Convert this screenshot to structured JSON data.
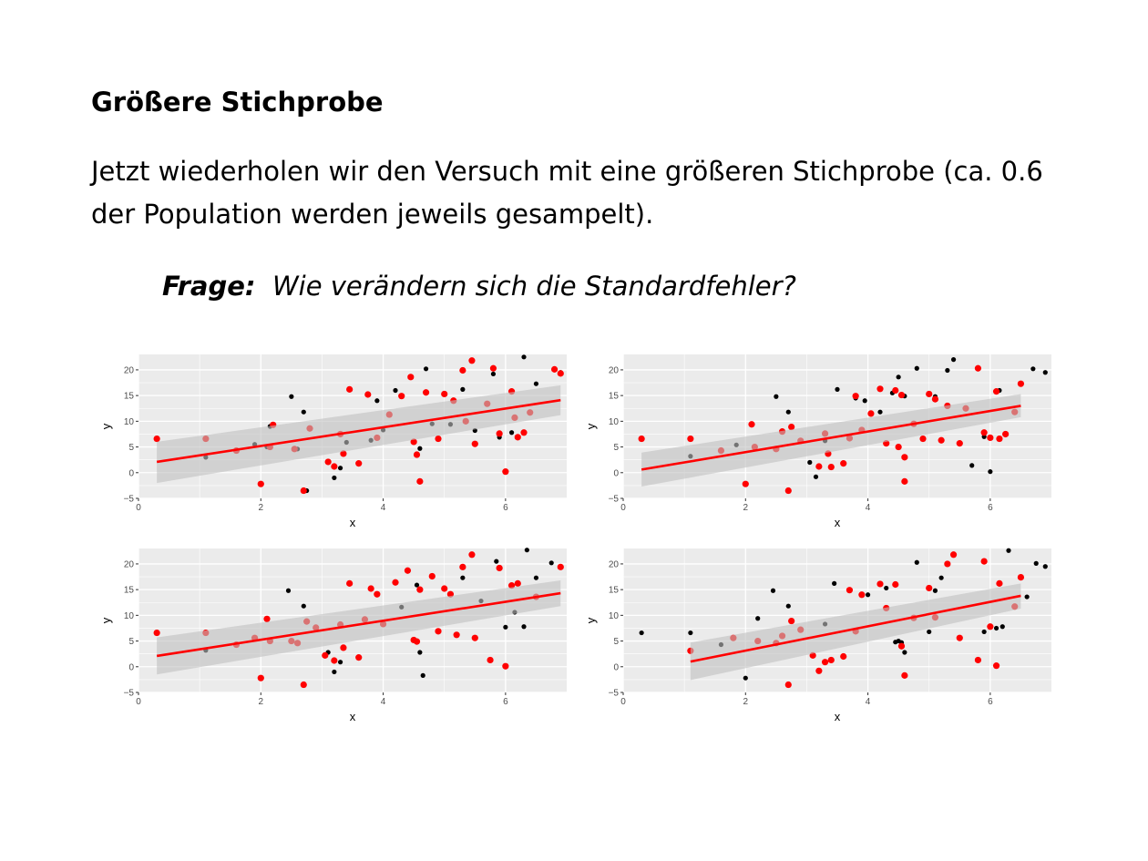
{
  "slide": {
    "title": "Größere Stichprobe",
    "body": "Jetzt wiederholen wir den Versuch mit eine größeren Stichprobe (ca. 0.6 der Population werden jeweils gesampelt).",
    "question_label": "Frage:",
    "question_text": "Wie verändern sich die Standardfehler?"
  },
  "colors": {
    "panel_bg": "#ebebeb",
    "grid": "#ffffff",
    "population_points": "#000000",
    "sample_points": "#ff0000",
    "fit_line": "#ff0000",
    "confidence_band": "#c0c0c0"
  },
  "chart_data": [
    {
      "type": "scatter",
      "title": "",
      "xlabel": "x",
      "ylabel": "y",
      "xlim": [
        0,
        7
      ],
      "ylim": [
        -5,
        23
      ],
      "xticks": [
        0,
        2,
        4,
        6
      ],
      "yticks": [
        -5,
        0,
        5,
        10,
        15,
        20
      ],
      "grid": true,
      "legend": "none",
      "series": [
        {
          "x": [
            0.3,
            1.1,
            1.6,
            1.9,
            2.0,
            2.1,
            2.15,
            2.5,
            2.6,
            2.7,
            2.75,
            3.1,
            3.2,
            3.3,
            3.4,
            3.6,
            3.8,
            3.9,
            4.0,
            4.2,
            4.5,
            4.6,
            4.7,
            4.8,
            5.0,
            5.1,
            5.3,
            5.5,
            5.8,
            5.9,
            6.1,
            6.3,
            6.5,
            6.9
          ],
          "y": [
            6.6,
            3.0,
            4.3,
            5.5,
            -2.2,
            5.0,
            9.0,
            14.8,
            4.6,
            11.8,
            -3.5,
            2.0,
            -1.0,
            0.9,
            5.9,
            1.8,
            6.3,
            14.0,
            8.3,
            16.0,
            6.0,
            4.7,
            20.2,
            9.5,
            15.3,
            9.4,
            16.2,
            8.2,
            19.2,
            6.9,
            7.8,
            22.5,
            17.3,
            19.5
          ]
        },
        {
          "x": [
            0.3,
            1.1,
            1.6,
            2.0,
            2.15,
            2.2,
            2.55,
            2.7,
            2.8,
            3.1,
            3.2,
            3.3,
            3.35,
            3.45,
            3.6,
            3.75,
            3.9,
            4.1,
            4.3,
            4.45,
            4.5,
            4.55,
            4.6,
            4.7,
            4.9,
            5.0,
            5.15,
            5.3,
            5.35,
            5.45,
            5.5,
            5.7,
            5.8,
            5.9,
            6.0,
            6.1,
            6.15,
            6.2,
            6.3,
            6.4,
            6.8,
            6.9
          ],
          "y": [
            6.6,
            6.6,
            4.3,
            -2.2,
            5.0,
            9.3,
            4.6,
            -3.5,
            8.6,
            2.1,
            1.2,
            7.5,
            3.7,
            16.2,
            1.8,
            15.2,
            6.8,
            11.3,
            14.9,
            18.6,
            6.0,
            3.5,
            -1.7,
            15.6,
            6.6,
            15.3,
            14.0,
            19.9,
            10.0,
            21.8,
            5.6,
            13.4,
            20.3,
            7.6,
            0.2,
            15.8,
            10.7,
            6.9,
            7.8,
            11.7,
            20.1,
            19.3
          ]
        }
      ],
      "fit": {
        "x": [
          0.3,
          6.9
        ],
        "y": [
          2.1,
          14.1
        ],
        "band_low": [
          -2.0,
          11.2
        ],
        "band_high": [
          6.0,
          17.0
        ]
      }
    },
    {
      "type": "scatter",
      "title": "",
      "xlabel": "x",
      "ylabel": "y",
      "xlim": [
        0,
        7
      ],
      "ylim": [
        -5,
        23
      ],
      "xticks": [
        0,
        2,
        4,
        6
      ],
      "yticks": [
        -5,
        0,
        5,
        10,
        15,
        20
      ],
      "grid": true,
      "legend": "none",
      "series": [
        {
          "x": [
            1.1,
            1.85,
            2.5,
            2.7,
            3.05,
            3.15,
            3.3,
            3.5,
            3.8,
            3.95,
            4.2,
            4.4,
            4.5,
            4.6,
            4.8,
            5.1,
            5.3,
            5.4,
            5.7,
            5.9,
            6.0,
            6.15,
            6.7,
            6.9
          ],
          "y": [
            3.2,
            5.4,
            14.8,
            11.8,
            2.0,
            -0.8,
            6.2,
            16.2,
            14.5,
            14.0,
            11.8,
            15.5,
            18.6,
            14.9,
            20.3,
            14.8,
            19.9,
            22.0,
            1.4,
            7.0,
            0.2,
            16.0,
            20.2,
            19.5
          ]
        },
        {
          "x": [
            0.3,
            1.1,
            1.6,
            2.0,
            2.1,
            2.15,
            2.5,
            2.6,
            2.7,
            2.75,
            2.9,
            3.2,
            3.3,
            3.35,
            3.4,
            3.6,
            3.7,
            3.8,
            3.9,
            4.05,
            4.2,
            4.3,
            4.45,
            4.5,
            4.55,
            4.6,
            4.6,
            4.75,
            4.9,
            5.0,
            5.1,
            5.2,
            5.3,
            5.5,
            5.6,
            5.8,
            5.9,
            6.0,
            6.1,
            6.15,
            6.25,
            6.4,
            6.5
          ],
          "y": [
            6.6,
            6.6,
            4.3,
            -2.2,
            9.4,
            5.0,
            4.6,
            8.0,
            -3.5,
            8.9,
            6.2,
            1.2,
            7.6,
            3.7,
            1.1,
            1.8,
            6.7,
            14.9,
            8.3,
            11.5,
            16.3,
            5.7,
            16.0,
            5.0,
            15.1,
            3.0,
            -1.7,
            9.5,
            6.6,
            15.3,
            14.3,
            6.3,
            13.0,
            5.7,
            12.5,
            20.3,
            7.8,
            6.8,
            15.8,
            6.6,
            7.5,
            11.8,
            17.3
          ]
        }
      ],
      "fit": {
        "x": [
          0.3,
          6.5
        ],
        "y": [
          0.6,
          13.0
        ],
        "band_low": [
          -2.7,
          10.8
        ],
        "band_high": [
          3.9,
          15.3
        ]
      }
    },
    {
      "type": "scatter",
      "title": "",
      "xlabel": "x",
      "ylabel": "y",
      "xlim": [
        0,
        7
      ],
      "ylim": [
        -5,
        23
      ],
      "xticks": [
        0,
        2,
        4,
        6
      ],
      "yticks": [
        -5,
        0,
        5,
        10,
        15,
        20
      ],
      "grid": true,
      "legend": "none",
      "series": [
        {
          "x": [
            1.1,
            1.6,
            2.45,
            2.7,
            3.1,
            3.2,
            3.3,
            4.3,
            4.55,
            4.6,
            4.65,
            5.0,
            5.3,
            5.6,
            5.85,
            6.0,
            6.15,
            6.3,
            6.35,
            6.5,
            6.75
          ],
          "y": [
            3.2,
            4.3,
            14.8,
            11.8,
            2.8,
            -1.0,
            0.9,
            11.6,
            15.9,
            2.8,
            -1.7,
            15.2,
            17.3,
            12.8,
            20.5,
            7.7,
            10.6,
            7.8,
            22.7,
            17.3,
            20.2
          ]
        },
        {
          "x": [
            0.3,
            1.1,
            1.6,
            1.9,
            2.0,
            2.1,
            2.15,
            2.5,
            2.6,
            2.7,
            2.75,
            2.9,
            3.05,
            3.2,
            3.3,
            3.35,
            3.45,
            3.6,
            3.7,
            3.8,
            3.9,
            4.0,
            4.2,
            4.4,
            4.5,
            4.55,
            4.6,
            4.8,
            4.9,
            5.0,
            5.1,
            5.2,
            5.3,
            5.45,
            5.5,
            5.75,
            5.9,
            6.0,
            6.1,
            6.2,
            6.5,
            6.9
          ],
          "y": [
            6.6,
            6.6,
            4.3,
            5.6,
            -2.2,
            9.3,
            5.0,
            5.0,
            4.6,
            -3.5,
            8.8,
            7.6,
            2.2,
            1.2,
            8.2,
            3.7,
            16.2,
            1.8,
            9.2,
            15.2,
            14.1,
            8.3,
            16.4,
            18.7,
            5.2,
            4.9,
            15.0,
            17.6,
            6.9,
            15.2,
            14.1,
            6.2,
            19.4,
            21.8,
            5.6,
            1.3,
            19.2,
            0.1,
            15.8,
            16.2,
            13.6,
            19.4
          ]
        }
      ],
      "fit": {
        "x": [
          0.3,
          6.9
        ],
        "y": [
          2.1,
          14.3
        ],
        "band_low": [
          -1.5,
          11.8
        ],
        "band_high": [
          5.7,
          16.8
        ]
      }
    },
    {
      "type": "scatter",
      "title": "",
      "xlabel": "x",
      "ylabel": "y",
      "xlim": [
        0,
        7
      ],
      "ylim": [
        -5,
        23
      ],
      "xticks": [
        0,
        2,
        4,
        6
      ],
      "yticks": [
        -5,
        0,
        5,
        10,
        15,
        20
      ],
      "grid": true,
      "legend": "none",
      "series": [
        {
          "x": [
            0.3,
            1.1,
            1.6,
            2.0,
            2.2,
            2.45,
            2.7,
            3.3,
            3.45,
            4.0,
            4.3,
            4.45,
            4.5,
            4.55,
            4.6,
            4.8,
            5.0,
            5.1,
            5.2,
            5.9,
            6.1,
            6.2,
            6.3,
            6.4,
            6.6,
            6.75,
            6.9
          ],
          "y": [
            6.6,
            6.6,
            4.3,
            -2.2,
            9.4,
            14.8,
            11.8,
            8.3,
            16.2,
            14.0,
            15.3,
            4.8,
            5.0,
            4.7,
            2.8,
            20.3,
            6.8,
            14.8,
            17.3,
            6.8,
            7.5,
            7.8,
            22.6,
            11.8,
            13.6,
            20.1,
            19.5
          ]
        },
        {
          "x": [
            1.1,
            1.8,
            2.2,
            2.5,
            2.6,
            2.7,
            2.75,
            2.9,
            3.1,
            3.2,
            3.3,
            3.4,
            3.6,
            3.7,
            3.8,
            3.9,
            4.2,
            4.3,
            4.45,
            4.55,
            4.6,
            4.75,
            5.0,
            5.1,
            5.3,
            5.4,
            5.5,
            5.8,
            5.9,
            6.0,
            6.1,
            6.15,
            6.4,
            6.5
          ],
          "y": [
            3.1,
            5.6,
            5.0,
            4.6,
            6.0,
            -3.5,
            8.9,
            7.2,
            2.2,
            -0.8,
            0.9,
            1.3,
            2.0,
            14.9,
            6.9,
            14.0,
            16.1,
            11.4,
            16.0,
            4.0,
            -1.7,
            9.5,
            15.3,
            9.6,
            20.0,
            21.8,
            5.6,
            1.3,
            20.5,
            7.8,
            0.2,
            16.2,
            11.7,
            17.4
          ]
        }
      ],
      "fit": {
        "x": [
          1.1,
          6.5
        ],
        "y": [
          1.0,
          13.8
        ],
        "band_low": [
          -2.6,
          11.3
        ],
        "band_high": [
          4.7,
          16.2
        ]
      }
    }
  ]
}
